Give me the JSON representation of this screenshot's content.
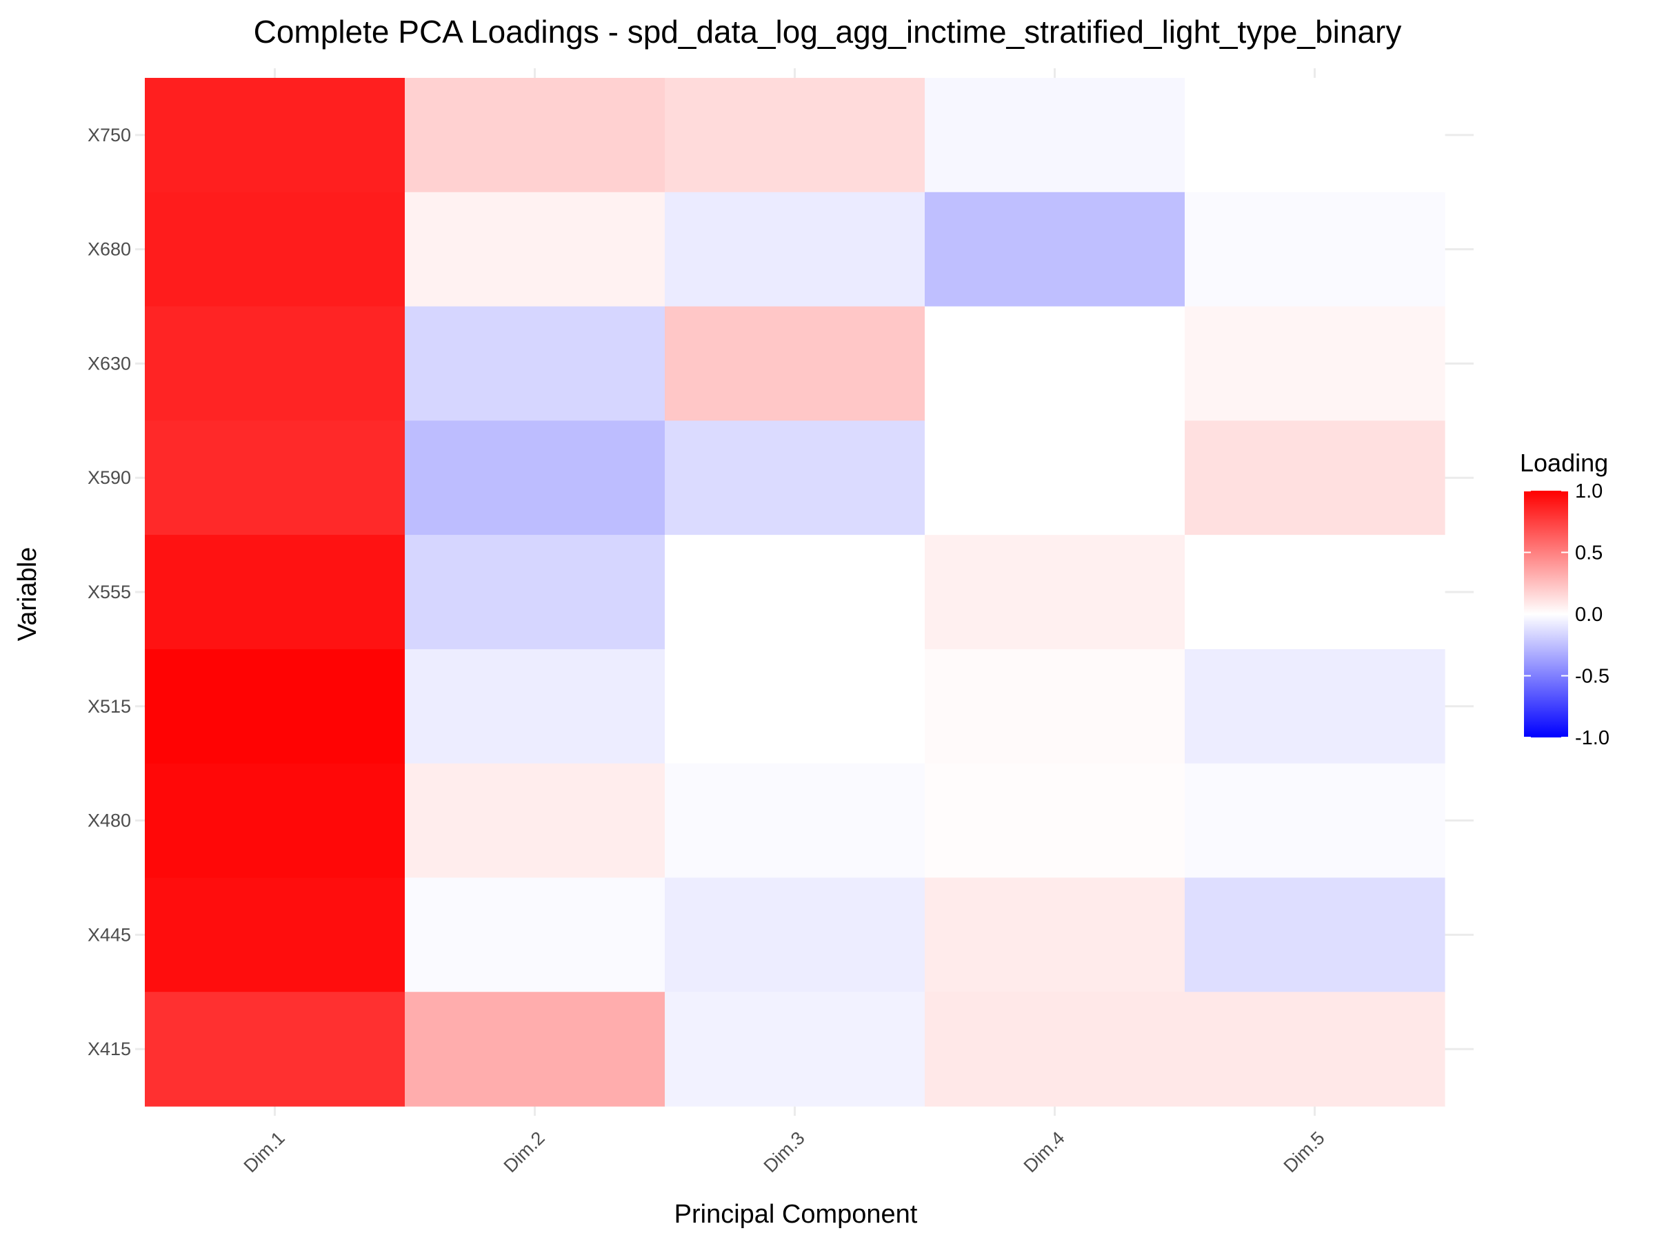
{
  "chart_data": {
    "type": "heatmap",
    "title": "Complete PCA Loadings - spd_data_log_agg_inctime_stratified_light_type_binary",
    "xlabel": "Principal Component",
    "ylabel": "Variable",
    "x_categories": [
      "Dim.1",
      "Dim.2",
      "Dim.3",
      "Dim.4",
      "Dim.5"
    ],
    "y_categories": [
      "X750",
      "X680",
      "X630",
      "X590",
      "X555",
      "X515",
      "X480",
      "X445",
      "X415"
    ],
    "values": [
      [
        0.88,
        0.18,
        0.14,
        -0.03,
        0.0
      ],
      [
        0.89,
        0.05,
        -0.08,
        -0.25,
        -0.02
      ],
      [
        0.86,
        -0.16,
        0.22,
        0.0,
        0.04
      ],
      [
        0.84,
        -0.26,
        -0.14,
        0.0,
        0.12
      ],
      [
        0.93,
        -0.16,
        0.0,
        0.06,
        0.0
      ],
      [
        0.99,
        -0.07,
        0.0,
        0.02,
        -0.07
      ],
      [
        0.97,
        0.07,
        -0.02,
        0.01,
        -0.02
      ],
      [
        0.95,
        -0.02,
        -0.07,
        0.08,
        -0.13
      ],
      [
        0.81,
        0.32,
        -0.05,
        0.09,
        0.09
      ]
    ],
    "legend": {
      "title": "Loading",
      "position": "right",
      "ticks": [
        "1.0",
        "0.5",
        "0.0",
        "-0.5",
        "-1.0"
      ],
      "range": [
        -1.0,
        1.0
      ],
      "low_color": "#0000FF",
      "mid_color": "#FFFFFF",
      "high_color": "#FF0000"
    },
    "grid": true,
    "grid_color": "#ebebeb"
  }
}
